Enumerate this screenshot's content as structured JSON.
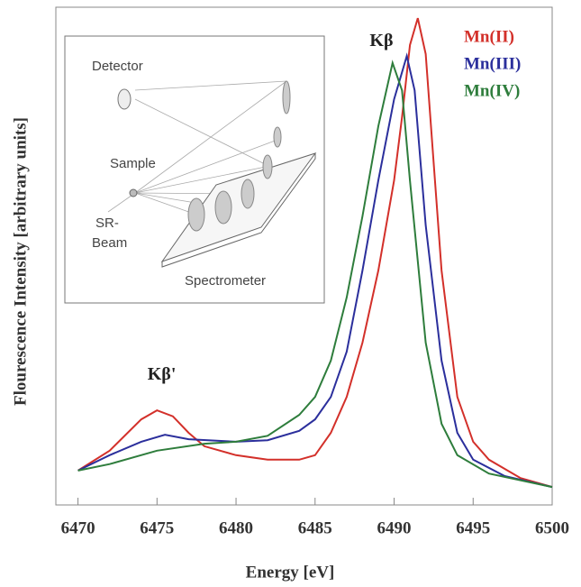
{
  "chart_data": {
    "type": "line",
    "xlabel": "Energy [eV]",
    "ylabel": "Flourescence Intensity  [arbitrary units]",
    "xlim": [
      6468.6,
      6500
    ],
    "xticks": [
      6470,
      6475,
      6480,
      6485,
      6490,
      6495,
      6500
    ],
    "ylim": [
      0,
      100
    ],
    "annotations": [
      {
        "text": "Kβ",
        "x": 6489.2,
        "y": 93
      },
      {
        "text": "Kβ'",
        "x": 6475.3,
        "y": 26
      }
    ],
    "series": [
      {
        "name": "Mn(II)",
        "color": "#d3302a",
        "x": [
          6470,
          6472,
          6474,
          6475,
          6476,
          6477,
          6478,
          6480,
          6482,
          6484,
          6485,
          6486,
          6487,
          6488,
          6489,
          6490,
          6490.5,
          6491,
          6491.5,
          6492,
          6492.5,
          6493,
          6494,
          6495,
          6496,
          6498,
          6500
        ],
        "values": [
          6.9,
          10.9,
          17.2,
          19.0,
          17.8,
          14.5,
          11.8,
          10.0,
          9.1,
          9.1,
          10.0,
          14.5,
          21.7,
          32.6,
          47.1,
          65.2,
          77.9,
          92.4,
          97.8,
          90.6,
          68.8,
          47.1,
          21.7,
          12.7,
          9.1,
          5.4,
          3.6
        ]
      },
      {
        "name": "Mn(III)",
        "color": "#2b2f9c",
        "x": [
          6470,
          6472,
          6474,
          6475.5,
          6477,
          6480,
          6482,
          6484,
          6485,
          6486,
          6487,
          6488,
          6489,
          6490,
          6490.8,
          6491.3,
          6492,
          6493,
          6494,
          6495,
          6497,
          6500
        ],
        "values": [
          6.9,
          10.0,
          12.7,
          14.1,
          13.2,
          12.7,
          13.0,
          14.9,
          17.2,
          21.7,
          30.8,
          47.1,
          65.2,
          81.5,
          90.2,
          83.3,
          56.2,
          29.0,
          14.5,
          9.1,
          5.8,
          3.6
        ]
      },
      {
        "name": "Mn(IV)",
        "color": "#2e7d3c",
        "x": [
          6470,
          6472,
          6475,
          6478,
          6480,
          6482,
          6484,
          6485,
          6486,
          6487,
          6488,
          6489,
          6489.9,
          6490.5,
          6491,
          6492,
          6493,
          6494,
          6496,
          6500
        ],
        "values": [
          6.9,
          8.2,
          10.9,
          12.3,
          12.7,
          13.9,
          18.1,
          21.7,
          29.0,
          41.7,
          58.0,
          76.1,
          88.8,
          83.3,
          65.2,
          32.6,
          16.3,
          10.0,
          6.3,
          3.6
        ]
      }
    ]
  },
  "inset": {
    "detector": "Detector",
    "sample": "Sample",
    "beam": [
      "SR-",
      "Beam"
    ],
    "spectrometer": "Spectrometer"
  }
}
